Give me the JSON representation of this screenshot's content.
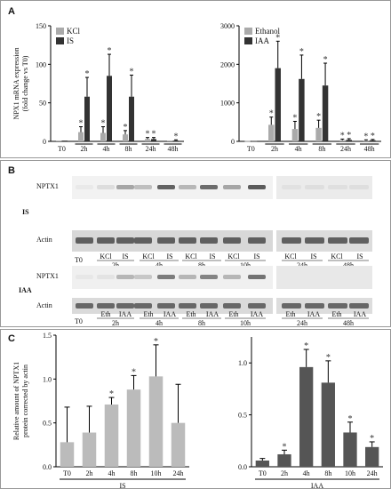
{
  "panels": {
    "a": "A",
    "b": "B",
    "c": "C"
  },
  "colors": {
    "light_bar": "#aaaaaa",
    "dark_bar": "#333333",
    "c_bar": "#bbbbbb",
    "c_bar_dark": "#555555",
    "band": "#4a4a4a"
  },
  "chart_data": [
    {
      "type": "bar",
      "ylabel_line1": "NPX1 mRNA expression",
      "ylabel_line2": "(fold change vs T0)",
      "ylim": [
        0,
        150
      ],
      "yticks": [
        "0",
        "50",
        "100",
        "150"
      ],
      "categories": [
        "T0",
        "2h",
        "4h",
        "8h",
        "24h",
        "48h"
      ],
      "series": [
        {
          "name": "KCl",
          "values": [
            1,
            12,
            11,
            9,
            3,
            1
          ],
          "errors": [
            0,
            7,
            8,
            5,
            2,
            0
          ]
        },
        {
          "name": "IS",
          "values": [
            1,
            58,
            85,
            58,
            3,
            1
          ],
          "errors": [
            0,
            25,
            28,
            28,
            2,
            1
          ]
        }
      ],
      "stars": [
        [
          false,
          true,
          true,
          true,
          true,
          false
        ],
        [
          false,
          true,
          true,
          true,
          true,
          true
        ]
      ],
      "legend": "top-left"
    },
    {
      "type": "bar",
      "ylim": [
        0,
        3000
      ],
      "yticks": [
        "0",
        "1000",
        "2000",
        "3000"
      ],
      "categories": [
        "T0",
        "2h",
        "4h",
        "8h",
        "24h",
        "48h"
      ],
      "series": [
        {
          "name": "Ethanol",
          "values": [
            10,
            430,
            320,
            350,
            30,
            20
          ],
          "errors": [
            0,
            200,
            200,
            200,
            30,
            20
          ]
        },
        {
          "name": "IAA",
          "values": [
            10,
            1900,
            1620,
            1450,
            40,
            30
          ],
          "errors": [
            0,
            700,
            620,
            580,
            30,
            20
          ]
        }
      ],
      "stars": [
        [
          false,
          true,
          true,
          true,
          true,
          true
        ],
        [
          false,
          true,
          true,
          true,
          true,
          true
        ]
      ],
      "legend": "top-left"
    },
    {
      "type": "bar",
      "ylabel_line1": "Relative amount of NPTX1",
      "ylabel_line2": "protein corrected by actin",
      "xlabel": "IS",
      "ylim": [
        0,
        1.5
      ],
      "yticks": [
        "0.0",
        "0.5",
        "1.0",
        "1.5"
      ],
      "categories": [
        "T0",
        "2h",
        "4h",
        "8h",
        "10h",
        "24h"
      ],
      "values": [
        0.28,
        0.39,
        0.71,
        0.88,
        1.03,
        0.5
      ],
      "errors": [
        0.4,
        0.3,
        0.08,
        0.16,
        0.36,
        0.44
      ],
      "stars": [
        false,
        false,
        true,
        true,
        true,
        false
      ]
    },
    {
      "type": "bar",
      "xlabel": "IAA",
      "ylim": [
        0,
        1.25
      ],
      "yticks": [
        "0.0",
        "0.5",
        "1.0"
      ],
      "categories": [
        "T0",
        "2h",
        "4h",
        "8h",
        "10h",
        "24h"
      ],
      "values": [
        0.06,
        0.12,
        0.96,
        0.81,
        0.33,
        0.19
      ],
      "errors": [
        0.02,
        0.04,
        0.17,
        0.21,
        0.1,
        0.05
      ],
      "stars": [
        false,
        true,
        true,
        true,
        true,
        true
      ]
    }
  ],
  "blot": {
    "is_label": "IS",
    "iaa_label": "IAA",
    "nptx1": "NPTX1",
    "actin": "Actin",
    "t0": "T0",
    "is_treat": [
      "KCl",
      "IS",
      "KCl",
      "IS",
      "KCl",
      "IS",
      "KCl",
      "IS"
    ],
    "is_treat_right": [
      "KCl",
      "IS",
      "KCl",
      "IS"
    ],
    "iaa_treat": [
      "Eth",
      "IAA",
      "Eth",
      "IAA",
      "Eth",
      "IAA",
      "Eth",
      "IAA"
    ],
    "iaa_treat_right": [
      "Eth",
      "IAA",
      "Eth",
      "IAA"
    ],
    "times": [
      "2h",
      "4h",
      "8h",
      "10h"
    ],
    "times_right": [
      "24h",
      "48h"
    ]
  }
}
